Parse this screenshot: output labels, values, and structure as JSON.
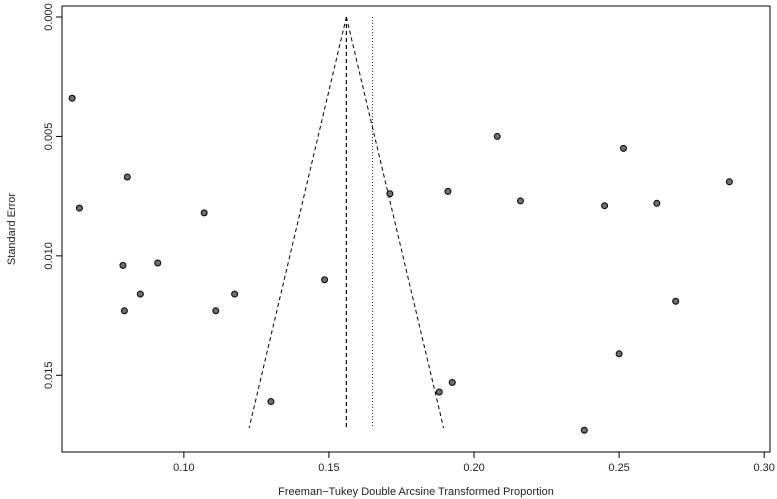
{
  "chart_data": {
    "type": "scatter",
    "title": "",
    "xlabel": "Freeman−Tukey Double Arcsine Transformed Proportion",
    "ylabel": "Standard Error",
    "xlim": [
      0.058,
      0.302
    ],
    "ylim": [
      0.0,
      0.0175
    ],
    "y_reversed": true,
    "grid": false,
    "legend": "none",
    "x_ticks": [
      "0.10",
      "0.15",
      "0.20",
      "0.25",
      "0.30"
    ],
    "x_tick_values": [
      0.1,
      0.15,
      0.2,
      0.25,
      0.3
    ],
    "y_ticks": [
      "0.000",
      "0.005",
      "0.010",
      "0.015"
    ],
    "y_tick_values": [
      0.0,
      0.005,
      0.01,
      0.015
    ],
    "pooled_estimate": 0.156,
    "reference_line": 0.165,
    "funnel": {
      "apex": [
        0.156,
        0.0
      ],
      "bottom_left": [
        0.1225,
        0.0172
      ],
      "bottom_right": [
        0.1895,
        0.0172
      ]
    },
    "points": [
      {
        "x": 0.0615,
        "y": 0.0034
      },
      {
        "x": 0.0805,
        "y": 0.0067
      },
      {
        "x": 0.064,
        "y": 0.008
      },
      {
        "x": 0.107,
        "y": 0.0082
      },
      {
        "x": 0.079,
        "y": 0.0104
      },
      {
        "x": 0.091,
        "y": 0.0103
      },
      {
        "x": 0.085,
        "y": 0.0116
      },
      {
        "x": 0.1175,
        "y": 0.0116
      },
      {
        "x": 0.0795,
        "y": 0.0123
      },
      {
        "x": 0.111,
        "y": 0.0123
      },
      {
        "x": 0.1485,
        "y": 0.011
      },
      {
        "x": 0.13,
        "y": 0.0161
      },
      {
        "x": 0.171,
        "y": 0.0074
      },
      {
        "x": 0.191,
        "y": 0.0073
      },
      {
        "x": 0.208,
        "y": 0.005
      },
      {
        "x": 0.216,
        "y": 0.0077
      },
      {
        "x": 0.2515,
        "y": 0.0055
      },
      {
        "x": 0.245,
        "y": 0.0079
      },
      {
        "x": 0.263,
        "y": 0.0078
      },
      {
        "x": 0.288,
        "y": 0.0069
      },
      {
        "x": 0.2695,
        "y": 0.0119
      },
      {
        "x": 0.25,
        "y": 0.0141
      },
      {
        "x": 0.1925,
        "y": 0.0153
      },
      {
        "x": 0.188,
        "y": 0.0157
      },
      {
        "x": 0.238,
        "y": 0.0173
      }
    ]
  },
  "colors": {
    "point_fill": "#6e6e6e",
    "point_stroke": "#000000",
    "axis": "#000000",
    "text": "#222222"
  }
}
